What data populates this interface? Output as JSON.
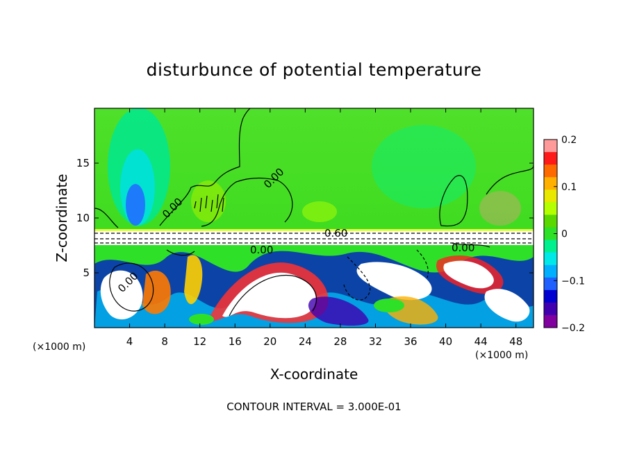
{
  "chart_data": {
    "type": "heatmap",
    "title": "disturbunce of potential temperature",
    "xlabel": "X-coordinate",
    "ylabel": "Z-coordinate",
    "x_unit": "(×1000 m)",
    "x_ticks": [
      4,
      8,
      12,
      16,
      20,
      24,
      28,
      32,
      36,
      40,
      44,
      48
    ],
    "y_ticks": [
      5,
      10,
      15
    ],
    "xlim": [
      0,
      50
    ],
    "ylim": [
      0,
      20
    ],
    "colorbar": {
      "ticks": [
        0.2,
        0.1,
        0,
        -0.1,
        -0.2
      ],
      "tick_labels": [
        "0.2",
        "0.1",
        "0",
        "−0.1",
        "−0.2"
      ],
      "range": [
        -0.2,
        0.2
      ],
      "colors": [
        "#ff9a9a",
        "#ff1a1a",
        "#ff6a00",
        "#ffb000",
        "#e8e800",
        "#b4ff00",
        "#5ad800",
        "#2ee028",
        "#00f090",
        "#00e8e8",
        "#00b0ff",
        "#2060ff",
        "#0000d0",
        "#4000b0",
        "#8000a0"
      ]
    },
    "contour_interval_text": "CONTOUR INTERVAL = 3.000E-01",
    "contour_labels": [
      "0.60",
      "0.00",
      "0.00",
      "0.00",
      "0.00",
      "0.00"
    ]
  }
}
